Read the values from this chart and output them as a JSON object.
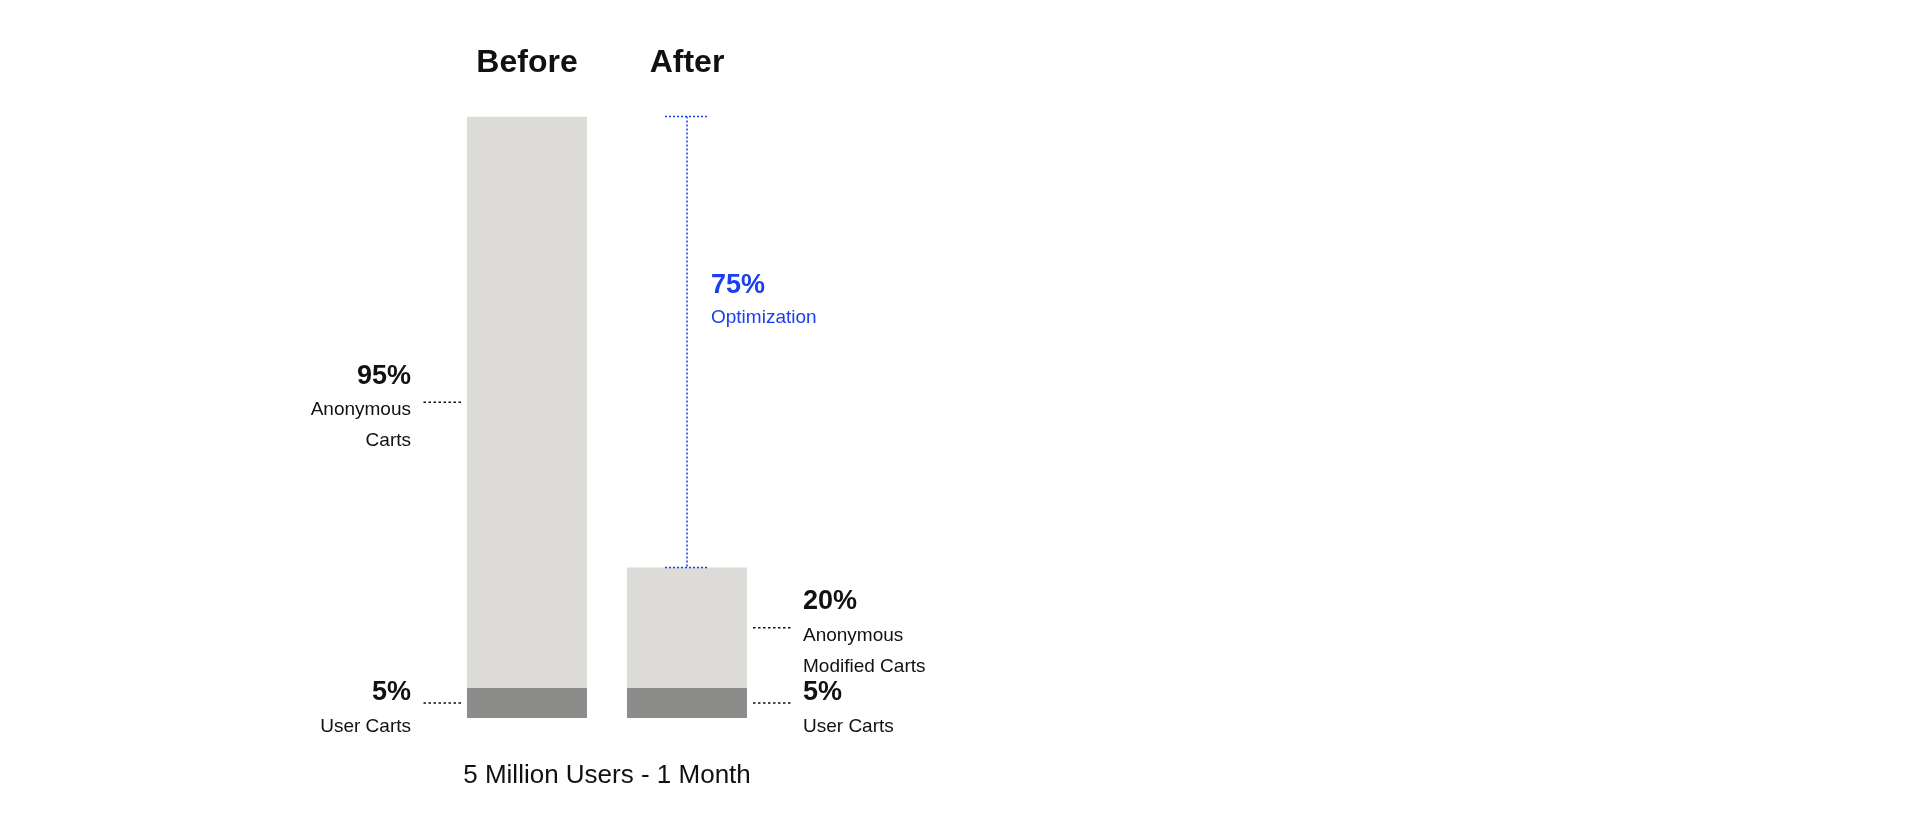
{
  "chart_data": {
    "type": "bar",
    "stacked": true,
    "categories": [
      "Before",
      "After"
    ],
    "xlabel": "5 Million Users - 1 Month",
    "ylim": [
      0,
      100
    ],
    "tick_labels": "x",
    "grid": false,
    "legend": false,
    "series": [
      {
        "color": "#8c8c8b",
        "values": [
          5,
          5
        ],
        "value_labels": [
          "5% User Carts",
          "5% User Carts"
        ]
      },
      {
        "color": "#dcdbd8",
        "values": [
          95,
          20
        ],
        "value_labels": [
          "95% Anonymous Carts",
          "20% Anonymous Modified Carts"
        ]
      },
      {
        "type": "line",
        "x": [
          "After",
          "After"
        ],
        "values": [
          100,
          25
        ],
        "color": "#1a3ff0",
        "line_style": "dotted",
        "marker": "none"
      }
    ],
    "annotations": [
      {
        "text": "75% Optimization",
        "x": "After",
        "y": 62.5
      }
    ]
  }
}
